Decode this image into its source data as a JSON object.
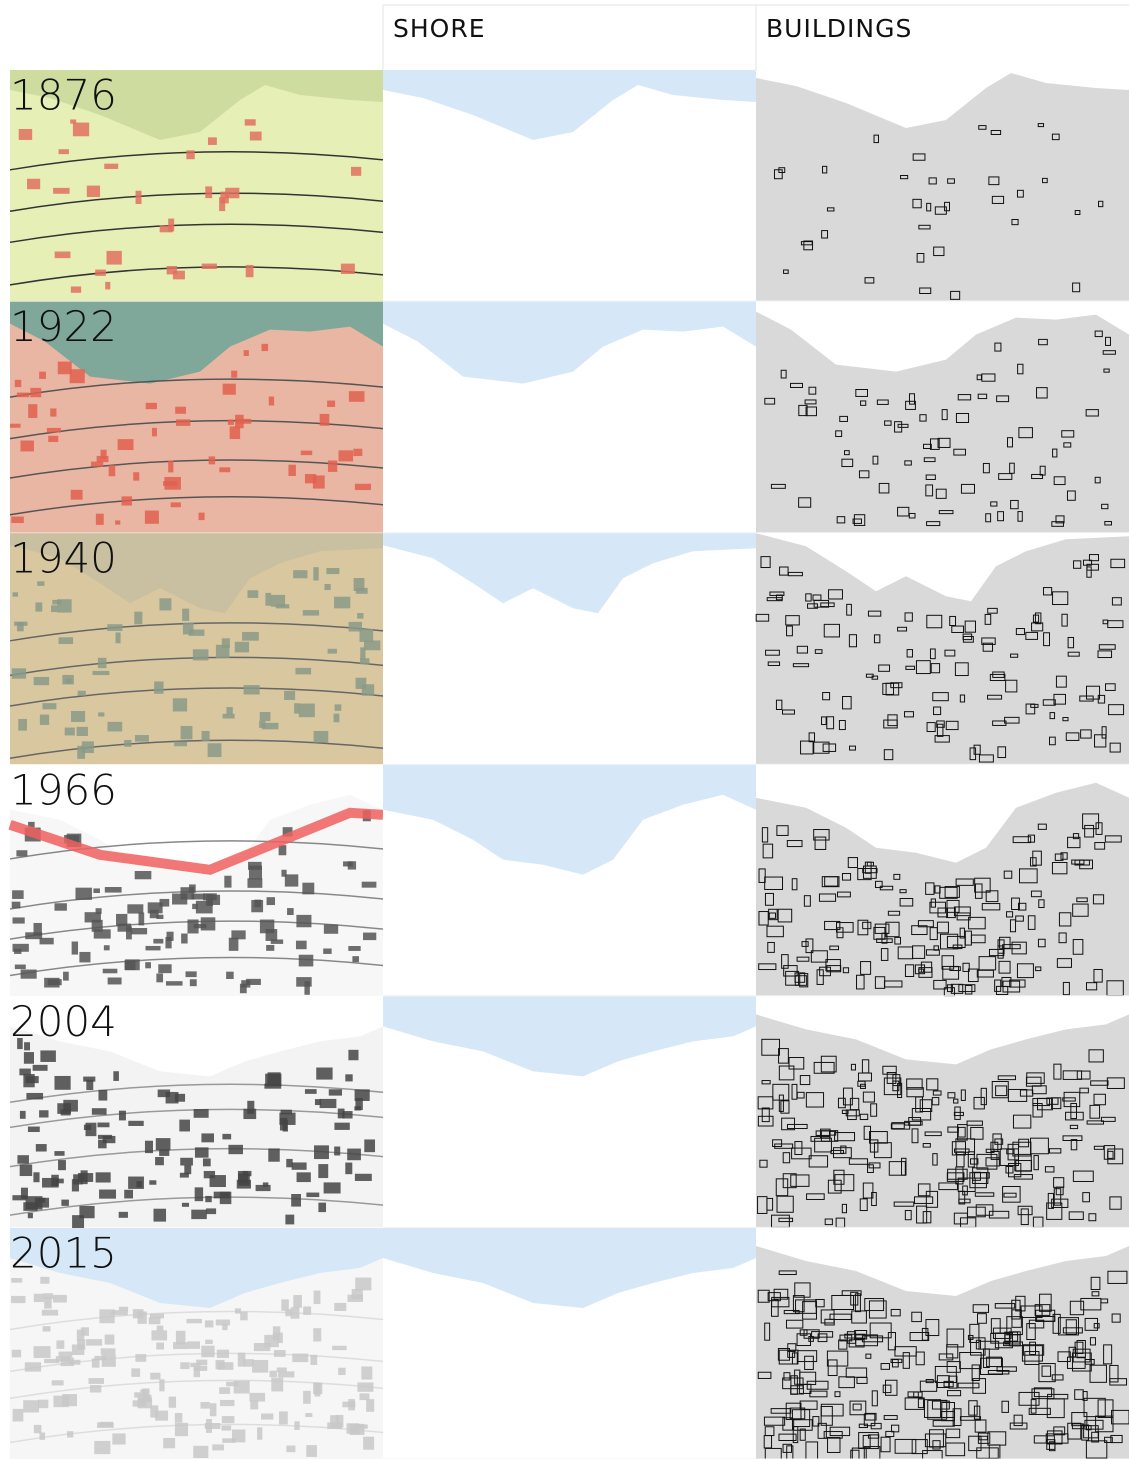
{
  "header": {
    "columns": [
      "SHORE",
      "BUILDINGS"
    ]
  },
  "rows": [
    {
      "year": "1876"
    },
    {
      "year": "1922"
    },
    {
      "year": "1940"
    },
    {
      "year": "1966"
    },
    {
      "year": "2004"
    },
    {
      "year": "2015"
    }
  ]
}
